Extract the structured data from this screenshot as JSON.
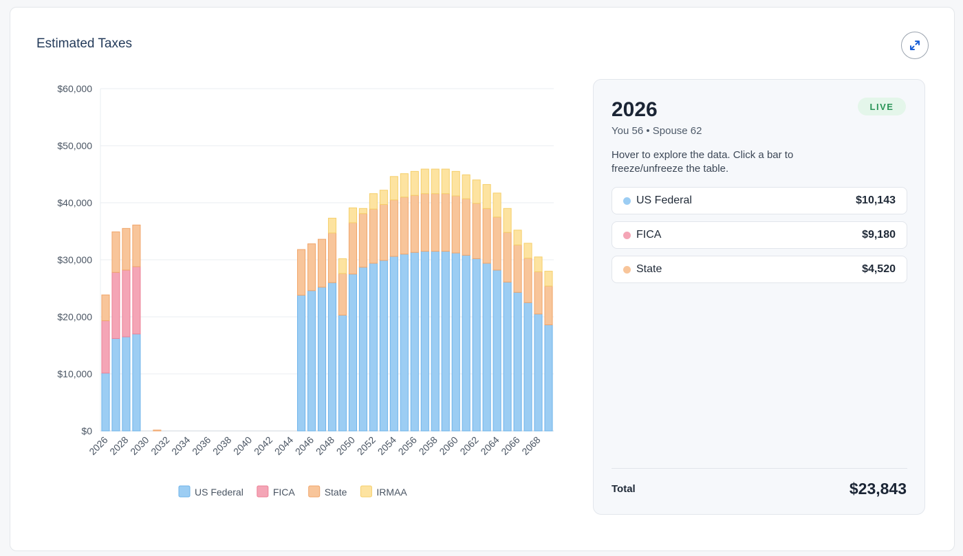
{
  "header": {
    "title": "Estimated Taxes"
  },
  "panel": {
    "year": "2026",
    "live_badge": "LIVE",
    "ages": "You 56 • Spouse 62",
    "hint": "Hover to explore the data. Click a bar to freeze/unfreeze the table.",
    "rows": [
      {
        "label": "US Federal",
        "value": "$10,143",
        "color": "#9ccdf3"
      },
      {
        "label": "FICA",
        "value": "$9,180",
        "color": "#f4a5b6"
      },
      {
        "label": "State",
        "value": "$4,520",
        "color": "#f8c59a"
      }
    ],
    "total_label": "Total",
    "total_value": "$23,843"
  },
  "chart_data": {
    "type": "bar",
    "stacked": true,
    "categories": [
      2026,
      2027,
      2028,
      2029,
      2030,
      2031,
      2032,
      2033,
      2034,
      2035,
      2036,
      2037,
      2038,
      2039,
      2040,
      2041,
      2042,
      2043,
      2044,
      2045,
      2046,
      2047,
      2048,
      2049,
      2050,
      2051,
      2052,
      2053,
      2054,
      2055,
      2056,
      2057,
      2058,
      2059,
      2060,
      2061,
      2062,
      2063,
      2064,
      2065,
      2066,
      2067,
      2068,
      2069
    ],
    "x_tick_labels": [
      "2026",
      "2028",
      "2030",
      "2032",
      "2034",
      "2036",
      "2038",
      "2040",
      "2042",
      "2044",
      "2046",
      "2048",
      "2050",
      "2052",
      "2054",
      "2056",
      "2058",
      "2060",
      "2062",
      "2064",
      "2066",
      "2068"
    ],
    "y_tick_labels": [
      "$0",
      "$10,000",
      "$20,000",
      "$30,000",
      "$40,000",
      "$50,000",
      "$60,000"
    ],
    "ylim": [
      0,
      60000
    ],
    "grid": true,
    "legend": "bottom",
    "series": [
      {
        "name": "US Federal",
        "color": "#9ccdf3",
        "stroke": "#6eb3ea",
        "values": [
          10143,
          16200,
          16500,
          17000,
          0,
          0,
          0,
          0,
          0,
          0,
          0,
          0,
          0,
          0,
          0,
          0,
          0,
          0,
          0,
          23800,
          24600,
          25200,
          26000,
          20300,
          27500,
          28700,
          29400,
          29900,
          30600,
          31000,
          31300,
          31500,
          31500,
          31500,
          31200,
          30800,
          30200,
          29400,
          28200,
          26100,
          24300,
          22500,
          20500,
          18600
        ]
      },
      {
        "name": "FICA",
        "color": "#f4a5b6",
        "stroke": "#ec8096",
        "values": [
          9180,
          11600,
          11700,
          11800,
          0,
          0,
          0,
          0,
          0,
          0,
          0,
          0,
          0,
          0,
          0,
          0,
          0,
          0,
          0,
          0,
          0,
          0,
          0,
          0,
          0,
          0,
          0,
          0,
          0,
          0,
          0,
          0,
          0,
          0,
          0,
          0,
          0,
          0,
          0,
          0,
          0,
          0,
          0,
          0
        ]
      },
      {
        "name": "State",
        "color": "#f8c59a",
        "stroke": "#f0a56a",
        "values": [
          4520,
          7100,
          7300,
          7300,
          0,
          150,
          0,
          0,
          0,
          0,
          0,
          0,
          0,
          0,
          0,
          0,
          0,
          0,
          0,
          8000,
          8200,
          8400,
          8700,
          7300,
          9000,
          9400,
          9500,
          9800,
          9900,
          10000,
          10000,
          10100,
          10100,
          10100,
          10000,
          9900,
          9700,
          9600,
          9300,
          8700,
          8300,
          7800,
          7400,
          6800
        ]
      },
      {
        "name": "IRMAA",
        "color": "#fde3a0",
        "stroke": "#f5cf6b",
        "values": [
          0,
          0,
          0,
          0,
          0,
          0,
          0,
          0,
          0,
          0,
          0,
          0,
          0,
          0,
          0,
          0,
          0,
          0,
          0,
          0,
          0,
          0,
          2600,
          2600,
          2600,
          900,
          2700,
          2500,
          4100,
          4100,
          4200,
          4300,
          4300,
          4300,
          4300,
          4200,
          4100,
          4200,
          4200,
          4200,
          2600,
          2600,
          2600,
          2600
        ]
      }
    ]
  }
}
